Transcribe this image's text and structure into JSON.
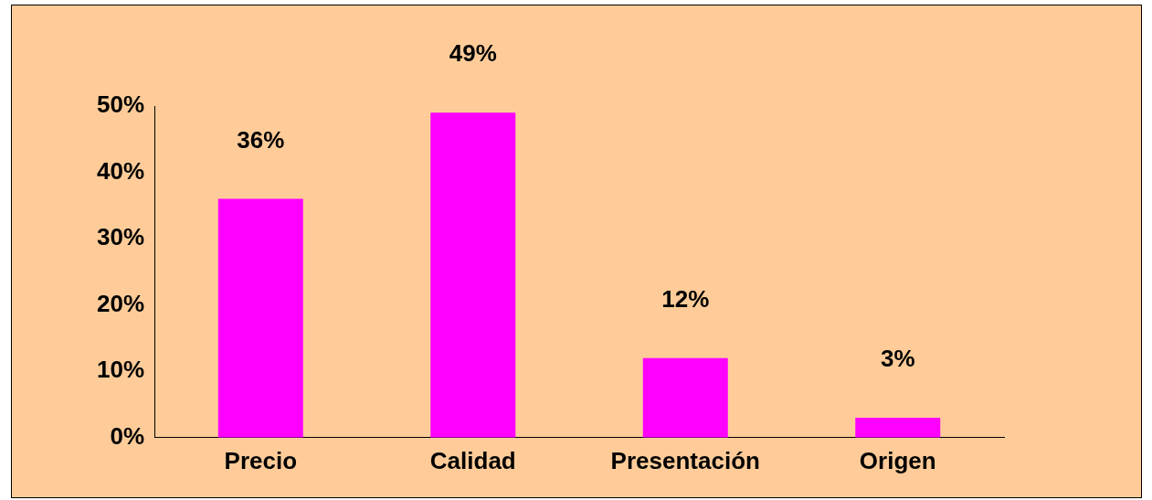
{
  "chart_data": {
    "type": "bar",
    "categories": [
      "Precio",
      "Calidad",
      "Presentación",
      "Origen"
    ],
    "values": [
      36,
      49,
      12,
      3
    ],
    "color": "#ff00ff",
    "value_labels": [
      "36%",
      "49%",
      "12%",
      "3%"
    ],
    "ylim": [
      0,
      50
    ],
    "yticks": [
      {
        "value": 0,
        "label": "0%"
      },
      {
        "value": 10,
        "label": "10%"
      },
      {
        "value": 20,
        "label": "20%"
      },
      {
        "value": 30,
        "label": "30%"
      },
      {
        "value": 40,
        "label": "40%"
      },
      {
        "value": 50,
        "label": "50%"
      }
    ],
    "grid": false,
    "legend": false
  }
}
